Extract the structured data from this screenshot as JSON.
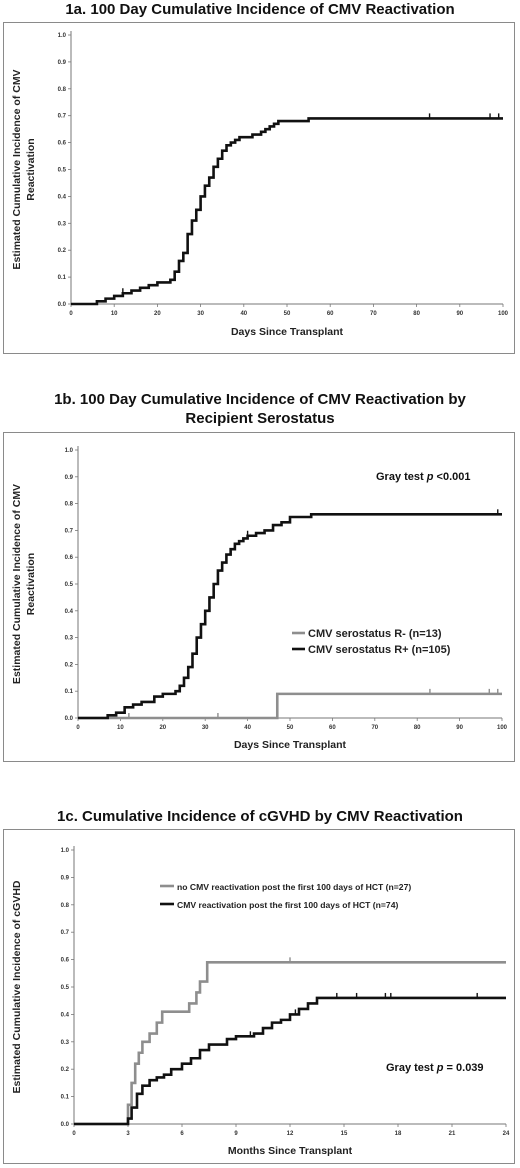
{
  "colors": {
    "black": "#111111",
    "gray": "#8e8e8e"
  },
  "chart_data": [
    {
      "type": "line",
      "step": true,
      "title": "1a. 100 Day Cumulative Incidence of CMV Reactivation",
      "xlabel": "Days  Since Transplant",
      "ylabel": [
        "Estimated  Cumulative  Incidence  of  CMV",
        "Reactivation"
      ],
      "xlim": [
        0,
        100
      ],
      "ylim": [
        0,
        1.0
      ],
      "xticks": [
        0,
        10,
        20,
        30,
        40,
        50,
        60,
        70,
        80,
        90,
        100
      ],
      "yticks": [
        0.0,
        0.1,
        0.2,
        0.3,
        0.4,
        0.5,
        0.6,
        0.7,
        0.8,
        0.9,
        1.0
      ],
      "series": [
        {
          "color": "black",
          "x": [
            0,
            6,
            8,
            10,
            12,
            14,
            16,
            18,
            20,
            23,
            24,
            25,
            26,
            27,
            28,
            29,
            30,
            31,
            32,
            33,
            34,
            35,
            36,
            37,
            38,
            39,
            40,
            42,
            44,
            45,
            46,
            47,
            48,
            50,
            52,
            55,
            100
          ],
          "y": [
            0,
            0.01,
            0.02,
            0.03,
            0.04,
            0.05,
            0.06,
            0.07,
            0.08,
            0.09,
            0.12,
            0.16,
            0.19,
            0.26,
            0.31,
            0.35,
            0.4,
            0.44,
            0.47,
            0.51,
            0.54,
            0.57,
            0.59,
            0.6,
            0.61,
            0.62,
            0.62,
            0.63,
            0.64,
            0.65,
            0.66,
            0.67,
            0.68,
            0.68,
            0.68,
            0.69,
            0.69
          ],
          "censor": [
            12,
            83,
            97,
            99
          ]
        }
      ]
    },
    {
      "type": "line",
      "step": true,
      "title": [
        "1b. 100 Day Cumulative Incidence of CMV Reactivation by",
        "Recipient Serostatus"
      ],
      "xlabel": "Days  Since  Transplant",
      "ylabel": [
        "Estimated  Cumulative  Incidence  of  CMV",
        "Reactivation"
      ],
      "xlim": [
        0,
        100
      ],
      "ylim": [
        0,
        1.0
      ],
      "xticks": [
        0,
        10,
        20,
        30,
        40,
        50,
        60,
        70,
        80,
        90,
        100
      ],
      "yticks": [
        0.0,
        0.1,
        0.2,
        0.3,
        0.4,
        0.5,
        0.6,
        0.7,
        0.8,
        0.9,
        1.0
      ],
      "annotation": "Gray test p <0.001",
      "series": [
        {
          "name": "CMV serostatus R- (n=13)",
          "color": "gray",
          "x": [
            0,
            47,
            100
          ],
          "y": [
            0,
            0.09,
            0.09
          ],
          "censor": [
            12,
            33,
            83,
            97,
            99
          ]
        },
        {
          "name": "CMV serostatus R+ (n=105)",
          "color": "black",
          "x": [
            0,
            7,
            9,
            11,
            13,
            15,
            18,
            20,
            23,
            24,
            25,
            26,
            27,
            28,
            29,
            30,
            31,
            32,
            33,
            34,
            35,
            36,
            37,
            38,
            39,
            40,
            42,
            44,
            46,
            48,
            50,
            52,
            55,
            100
          ],
          "y": [
            0,
            0.01,
            0.02,
            0.04,
            0.05,
            0.06,
            0.08,
            0.09,
            0.1,
            0.12,
            0.15,
            0.19,
            0.24,
            0.3,
            0.35,
            0.4,
            0.45,
            0.5,
            0.55,
            0.58,
            0.61,
            0.63,
            0.65,
            0.66,
            0.67,
            0.68,
            0.69,
            0.7,
            0.72,
            0.73,
            0.75,
            0.75,
            0.76,
            0.76
          ],
          "censor": [
            40,
            99
          ]
        }
      ]
    },
    {
      "type": "line",
      "step": true,
      "title": "1c. Cumulative Incidence of cGVHD by CMV Reactivation",
      "xlabel": "Months  Since  Transplant",
      "ylabel": [
        "Estimated  Cumulative  Incidence  of  cGVHD"
      ],
      "xlim": [
        0,
        24
      ],
      "ylim": [
        0,
        1.0
      ],
      "xticks": [
        0,
        3,
        6,
        9,
        12,
        15,
        18,
        21,
        24
      ],
      "yticks": [
        0.0,
        0.1,
        0.2,
        0.3,
        0.4,
        0.5,
        0.6,
        0.7,
        0.8,
        0.9,
        1.0
      ],
      "annotation": "Gray test p = 0.039",
      "series": [
        {
          "name": "no CMV reactivation post the first 100 days of HCT (n=27)",
          "color": "gray",
          "x": [
            0,
            3.0,
            3.2,
            3.4,
            3.6,
            3.8,
            4.2,
            4.6,
            4.9,
            6.0,
            6.4,
            6.8,
            7.0,
            7.4,
            24
          ],
          "y": [
            0,
            0.07,
            0.15,
            0.22,
            0.26,
            0.3,
            0.33,
            0.37,
            0.41,
            0.41,
            0.44,
            0.48,
            0.52,
            0.59,
            0.59
          ],
          "censor": [
            12
          ]
        },
        {
          "name": "CMV reactivation post the first 100 days of HCT (n=74)",
          "color": "black",
          "x": [
            0,
            3.0,
            3.2,
            3.5,
            3.8,
            4.2,
            4.6,
            5.0,
            5.4,
            6.0,
            6.5,
            7.0,
            7.5,
            8.5,
            9.0,
            10.0,
            10.5,
            11.0,
            11.5,
            12.0,
            12.5,
            13.0,
            13.5,
            24
          ],
          "y": [
            0,
            0.02,
            0.06,
            0.11,
            0.14,
            0.16,
            0.17,
            0.18,
            0.2,
            0.22,
            0.24,
            0.27,
            0.29,
            0.31,
            0.32,
            0.33,
            0.35,
            0.37,
            0.38,
            0.4,
            0.42,
            0.44,
            0.46,
            0.46
          ],
          "censor": [
            9.8,
            12.3,
            14.6,
            15.7,
            17.3,
            17.6,
            22.4
          ]
        }
      ]
    }
  ]
}
